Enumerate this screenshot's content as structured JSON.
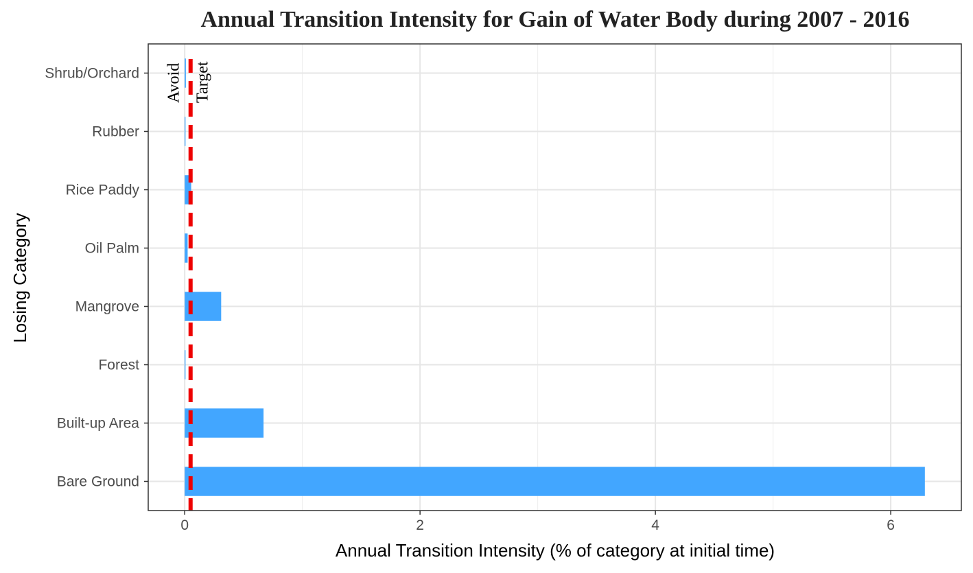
{
  "chart_data": {
    "type": "bar",
    "orientation": "horizontal",
    "title": "Annual Transition Intensity for Gain of  Water Body during 2007 - 2016",
    "xlabel": "Annual Transition Intensity (% of category at initial time)",
    "ylabel": "Losing Category",
    "categories": [
      "Bare Ground",
      "Built-up Area",
      "Forest",
      "Mangrove",
      "Oil Palm",
      "Rice Paddy",
      "Rubber",
      "Shrub/Orchard"
    ],
    "values": [
      6.29,
      0.67,
      0.005,
      0.31,
      0.025,
      0.055,
      0.005,
      0.01
    ],
    "xlim": [
      -0.31,
      6.6
    ],
    "xticks": [
      0,
      2,
      4,
      6
    ],
    "xtick_labels": [
      "0",
      "2",
      "4",
      "6"
    ],
    "reference_line": {
      "value": 0.05,
      "style": "dashed",
      "color": "#ee0000"
    },
    "annotations": {
      "left": "Avoid",
      "right": "Target"
    },
    "bar_color": "#42a6ff",
    "grid": true,
    "legend": "none"
  }
}
